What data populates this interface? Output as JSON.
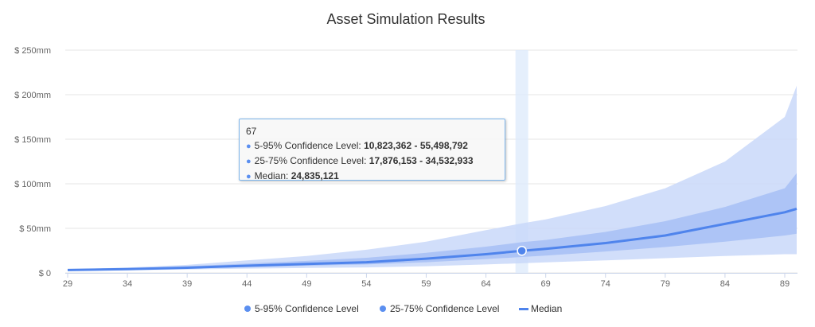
{
  "chart_data": {
    "type": "area",
    "title": "Asset Simulation Results",
    "xlabel": "",
    "ylabel": "",
    "xlim": [
      29,
      90
    ],
    "ylim": [
      0,
      250
    ],
    "x_ticks": [
      29,
      34,
      39,
      44,
      49,
      54,
      59,
      64,
      69,
      74,
      79,
      84,
      89
    ],
    "y_ticks": [
      {
        "value": 0,
        "label": "$ 0"
      },
      {
        "value": 50,
        "label": "$ 50mm"
      },
      {
        "value": 100,
        "label": "$ 100mm"
      },
      {
        "value": 150,
        "label": "$ 150mm"
      },
      {
        "value": 200,
        "label": "$ 200mm"
      },
      {
        "value": 250,
        "label": "$ 250mm"
      }
    ],
    "x": [
      29,
      34,
      39,
      44,
      49,
      54,
      59,
      64,
      67,
      69,
      74,
      79,
      84,
      89,
      90
    ],
    "series": [
      {
        "name": "5-95% Confidence Level",
        "color": "#c9d8f9",
        "low": [
          2.5,
          3.0,
          3.8,
          4.8,
          5.5,
          6.2,
          7.5,
          9.5,
          10.8,
          11.8,
          14,
          16.5,
          19,
          21,
          21
        ],
        "high": [
          4.0,
          6.0,
          9.0,
          14,
          19,
          26,
          35,
          48,
          55.5,
          60,
          75,
          95,
          125,
          175,
          210
        ]
      },
      {
        "name": "25-75% Confidence Level",
        "color": "#a7c0f5",
        "low": [
          3.0,
          3.8,
          5.0,
          6.5,
          8.0,
          9.5,
          12,
          15.5,
          17.9,
          19.5,
          24,
          29,
          35,
          42,
          44
        ],
        "high": [
          3.6,
          5.2,
          7.5,
          10.5,
          13.5,
          17,
          22.5,
          29.5,
          34.5,
          37,
          46,
          58,
          74,
          95,
          112
        ]
      },
      {
        "name": "Median",
        "color": "#4f84ec",
        "values": [
          3.2,
          4.3,
          5.8,
          8.0,
          10.0,
          12.0,
          16.0,
          21.0,
          24.8,
          27.0,
          33.5,
          42,
          55,
          68,
          72
        ]
      }
    ],
    "highlight_x": 67,
    "legend": {
      "position": "bottom",
      "items": [
        {
          "label": "5-95% Confidence Level",
          "symbol": "dot",
          "color": "#5b8ff0"
        },
        {
          "label": "25-75% Confidence Level",
          "symbol": "dot",
          "color": "#5b8ff0"
        },
        {
          "label": "Median",
          "symbol": "line",
          "color": "#4f84ec"
        }
      ]
    },
    "tooltip": {
      "header": "67",
      "rows": [
        {
          "label": "5-95% Confidence Level:",
          "low": "10,823,362",
          "sep": " - ",
          "high": "55,498,792"
        },
        {
          "label": "25-75% Confidence Level:",
          "low": "17,876,153",
          "sep": " - ",
          "high": "34,532,933"
        },
        {
          "label": "Median:",
          "value": "24,835,121"
        }
      ]
    }
  }
}
